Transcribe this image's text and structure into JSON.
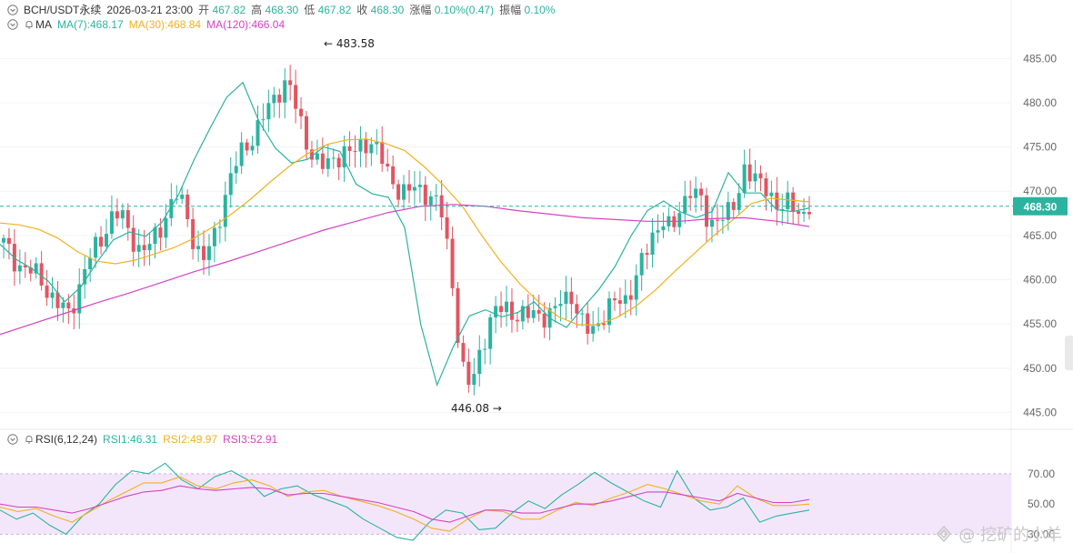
{
  "header": {
    "symbol": "BCH/USDT永续",
    "datetime": "2026-03-21 23:00",
    "open_label": "开",
    "open": "467.82",
    "high_label": "高",
    "high": "468.30",
    "low_label": "低",
    "low": "467.82",
    "close_label": "收",
    "close": "468.30",
    "change_label": "涨幅",
    "change": "0.10%(0.47)",
    "amp_label": "振幅",
    "amp": "0.10%"
  },
  "ma_legend": {
    "name": "MA",
    "ma7": "MA(7):468.17",
    "ma30": "MA(30):468.84",
    "ma120": "MA(120):466.04"
  },
  "rsi_legend": {
    "name": "RSI(6,12,24)",
    "rsi1": "RSI1:46.31",
    "rsi2": "RSI2:49.97",
    "rsi3": "RSI3:52.91"
  },
  "watermark": "@ 挖矿的小羊",
  "colors": {
    "up": "#2bb3a0",
    "down": "#e25561",
    "ma7": "#2bb3a0",
    "ma30": "#f0b21e",
    "ma120": "#d543c1",
    "rsi1": "#2bb3a0",
    "rsi2": "#f0b21e",
    "rsi3": "#d543c1",
    "price_tag": "#2bb3a0"
  },
  "chart_data": [
    {
      "type": "candlestick",
      "title": "BCH/USDT永续",
      "price_axis_ticks": [
        "485.00",
        "480.00",
        "475.00",
        "470.00",
        "465.00",
        "460.00",
        "455.00",
        "450.00",
        "445.00"
      ],
      "ylim": [
        443.5,
        487.5
      ],
      "current_price": "468.30",
      "annotations": {
        "high": "483.58",
        "low": "446.08"
      },
      "close_path": [
        464.0,
        462.5,
        461.5,
        460.8,
        460.2,
        458.5,
        457.0,
        456.0,
        458.5,
        461.5,
        463.5,
        465.5,
        467.5,
        466.8,
        465.0,
        463.0,
        463.8,
        465.8,
        468.0,
        469.5,
        467.5,
        463.5,
        462.0,
        465.0,
        469.0,
        472.0,
        474.5,
        476.0,
        477.5,
        479.5,
        481.5,
        482.5,
        479.0,
        476.0,
        473.5,
        472.5,
        473.8,
        474.5,
        474.0,
        475.2,
        476.0,
        474.0,
        472.0,
        470.5,
        469.5,
        470.5,
        470.0,
        469.0,
        467.0,
        460.0,
        450.0,
        447.5,
        452.0,
        455.0,
        456.5,
        457.0,
        456.0,
        455.5,
        456.5,
        456.0,
        455.8,
        458.0,
        458.5,
        455.0,
        454.0,
        455.5,
        456.5,
        457.5,
        458.0,
        460.0,
        462.5,
        465.5,
        467.0,
        465.0,
        468.5,
        470.5,
        469.0,
        466.0,
        467.5,
        467.0,
        468.5,
        473.5,
        471.0,
        470.5,
        469.5,
        468.0,
        468.5,
        467.5,
        468.3
      ],
      "candles_drawn": 150,
      "series": [
        {
          "name": "MA(7)",
          "values": [
            464.0,
            462.3,
            461.2,
            459.8,
            457.5,
            459.2,
            462.0,
            464.5,
            465.4,
            464.9,
            466.5,
            469.5,
            473.6,
            477.2,
            480.6,
            482.3,
            477.9,
            474.9,
            473.2,
            473.6,
            475.0,
            474.5,
            470.8,
            469.7,
            469.3,
            465.9,
            454.9,
            448.1,
            452.4,
            455.9,
            456.6,
            455.8,
            456.3,
            457.5,
            455.6,
            454.6,
            456.8,
            458.9,
            461.5,
            465.0,
            467.8,
            468.9,
            467.7,
            467.0,
            467.7,
            472.1,
            469.8,
            469.8,
            467.9,
            467.7,
            468.1
          ]
        },
        {
          "name": "MA(30)",
          "values": [
            466.4,
            466.2,
            465.7,
            464.7,
            463.2,
            462.1,
            461.8,
            462.2,
            462.9,
            463.6,
            464.6,
            465.9,
            467.4,
            469.1,
            471.0,
            472.8,
            474.3,
            475.3,
            475.8,
            475.9,
            475.4,
            474.6,
            472.8,
            470.7,
            468.3,
            465.0,
            462.0,
            459.5,
            457.4,
            455.8,
            454.9,
            454.9,
            455.7,
            457.0,
            458.8,
            460.9,
            462.9,
            464.9,
            466.7,
            468.6,
            469.2,
            469.0,
            468.8
          ]
        },
        {
          "name": "MA(120)",
          "values": [
            453.8,
            455.0,
            456.2,
            457.4,
            458.5,
            459.7,
            460.9,
            462.0,
            463.2,
            464.4,
            465.6,
            466.6,
            467.6,
            468.3,
            468.5,
            468.3,
            467.8,
            467.4,
            467.0,
            466.8,
            466.6,
            466.6,
            466.9,
            467.0,
            466.6,
            466.0
          ]
        }
      ]
    },
    {
      "type": "line",
      "title": "RSI(6,12,24)",
      "ylabel": "",
      "y_axis_ticks": [
        "70.00",
        "50.00",
        "30.00"
      ],
      "ylim": [
        20,
        85
      ],
      "band": [
        30,
        70
      ],
      "series": [
        {
          "name": "RSI1",
          "values": [
            46,
            40,
            44,
            36,
            30,
            42,
            50,
            63,
            72,
            70,
            77,
            66,
            60,
            68,
            72,
            66,
            55,
            60,
            62,
            56,
            52,
            48,
            40,
            34,
            28,
            26,
            38,
            46,
            44,
            33,
            34,
            44,
            52,
            47,
            56,
            63,
            71,
            64,
            58,
            52,
            48,
            72,
            54,
            46,
            48,
            54,
            38,
            42,
            44,
            46
          ]
        },
        {
          "name": "RSI2",
          "values": [
            48,
            45,
            47,
            42,
            38,
            45,
            52,
            58,
            64,
            64,
            68,
            62,
            60,
            64,
            66,
            62,
            55,
            58,
            59,
            55,
            52,
            49,
            45,
            40,
            34,
            32,
            40,
            46,
            45,
            40,
            40,
            46,
            51,
            49,
            54,
            58,
            63,
            60,
            56,
            52,
            50,
            62,
            54,
            49,
            49,
            50
          ]
        },
        {
          "name": "RSI3",
          "values": [
            50,
            48,
            48,
            46,
            44,
            47,
            51,
            55,
            58,
            59,
            62,
            60,
            59,
            60,
            61,
            60,
            56,
            57,
            57,
            55,
            53,
            51,
            48,
            45,
            40,
            38,
            42,
            46,
            46,
            44,
            44,
            47,
            50,
            50,
            52,
            55,
            58,
            58,
            56,
            54,
            52,
            57,
            54,
            51,
            51,
            53
          ]
        }
      ]
    }
  ]
}
